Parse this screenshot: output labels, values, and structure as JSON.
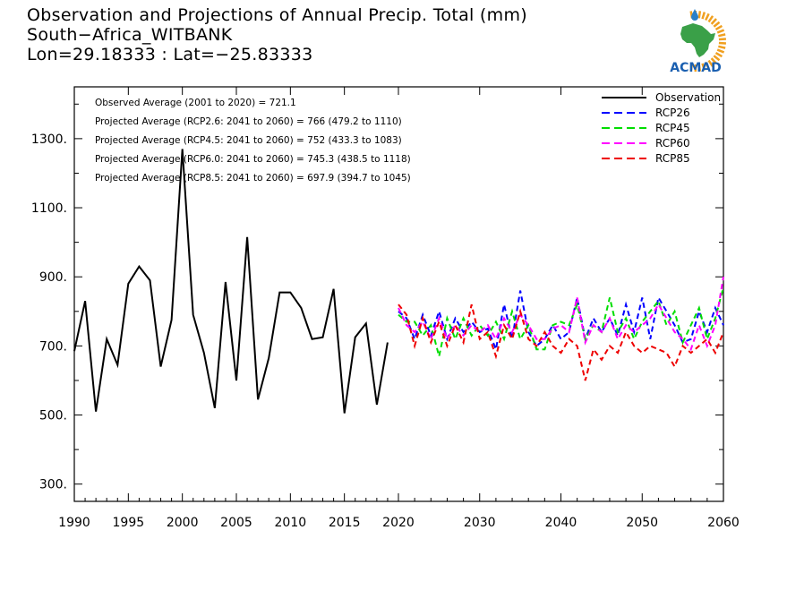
{
  "header": {
    "title": "Observation and Projections of Annual Precip. Total (mm)",
    "location": "South−Africa_WITBANK",
    "coords": "Lon=29.18333 : Lat=−25.83333"
  },
  "logo": {
    "text": "ACMAD",
    "icon": "acmad-africa-sun-logo",
    "colors": {
      "sun": "#f0a020",
      "africa": "#3aa048",
      "drop": "#2a80c8",
      "text": "#1a5fb0"
    }
  },
  "annotations": [
    "Observed Average (2001 to 2020) = 721.1",
    "Projected Average (RCP2.6: 2041 to 2060) = 766 (479.2 to 1110)",
    "Projected Average (RCP4.5: 2041 to 2060) = 752 (433.3 to 1083)",
    "Projected Average (RCP6.0: 2041 to 2060) = 745.3 (438.5 to 1118)",
    "Projected Average (RCP8.5: 2041 to 2060) = 697.9 (394.7 to 1045)"
  ],
  "chart_data": {
    "type": "line",
    "title": "Observation and Projections of Annual Precip. Total (mm)",
    "xlabel": "",
    "ylabel": "",
    "xlim_obs": [
      1990,
      2020
    ],
    "xlim_proj": [
      2020,
      2060
    ],
    "ylim": [
      250,
      1450
    ],
    "yticks": [
      300,
      500,
      700,
      900,
      1100,
      1300
    ],
    "ytick_labels": [
      "300.",
      "500.",
      "700.",
      "900.",
      "1100.",
      "1300."
    ],
    "xticks_obs": [
      1990,
      1995,
      2000,
      2005,
      2010,
      2015,
      2020
    ],
    "xticks_proj": [
      2030,
      2040,
      2050,
      2060
    ],
    "xtick_labels_obs": [
      "1990",
      "1995",
      "2000",
      "2005",
      "2010",
      "2015",
      "2020"
    ],
    "xtick_labels_proj": [
      "2030",
      "2040",
      "2050",
      "2060"
    ],
    "legend_position": "top-right",
    "series": [
      {
        "name": "Observation",
        "color": "#000000",
        "dash": "solid",
        "x": [
          1990,
          1991,
          1992,
          1993,
          1994,
          1995,
          1996,
          1997,
          1998,
          1999,
          2000,
          2001,
          2002,
          2003,
          2004,
          2005,
          2006,
          2007,
          2008,
          2009,
          2010,
          2011,
          2012,
          2013,
          2014,
          2015,
          2016,
          2017,
          2018,
          2019,
          2020
        ],
        "values": [
          685,
          830,
          510,
          720,
          645,
          880,
          930,
          890,
          640,
          775,
          1270,
          790,
          680,
          520,
          885,
          600,
          1015,
          545,
          665,
          855,
          855,
          810,
          720,
          725,
          865,
          505,
          725,
          765,
          530,
          710,
          null
        ]
      },
      {
        "name": "RCP26",
        "color": "#0000ff",
        "dash": "dashed",
        "x": [
          2020,
          2021,
          2022,
          2023,
          2024,
          2025,
          2026,
          2027,
          2028,
          2029,
          2030,
          2031,
          2032,
          2033,
          2034,
          2035,
          2036,
          2037,
          2038,
          2039,
          2040,
          2041,
          2042,
          2043,
          2044,
          2045,
          2046,
          2047,
          2048,
          2049,
          2050,
          2051,
          2052,
          2053,
          2054,
          2055,
          2056,
          2057,
          2058,
          2059,
          2060
        ],
        "values": [
          800,
          780,
          720,
          790,
          730,
          800,
          720,
          780,
          740,
          770,
          740,
          750,
          690,
          820,
          720,
          860,
          740,
          700,
          720,
          760,
          720,
          740,
          840,
          720,
          780,
          740,
          780,
          730,
          820,
          740,
          840,
          720,
          840,
          800,
          760,
          710,
          720,
          800,
          740,
          810,
          760
        ]
      },
      {
        "name": "RCP45",
        "color": "#00dd00",
        "dash": "dashed",
        "x": [
          2020,
          2021,
          2022,
          2023,
          2024,
          2025,
          2026,
          2027,
          2028,
          2029,
          2030,
          2031,
          2032,
          2033,
          2034,
          2035,
          2036,
          2037,
          2038,
          2039,
          2040,
          2041,
          2042,
          2043,
          2044,
          2045,
          2046,
          2047,
          2048,
          2049,
          2050,
          2051,
          2052,
          2053,
          2054,
          2055,
          2056,
          2057,
          2058,
          2059,
          2060
        ],
        "values": [
          790,
          770,
          770,
          730,
          760,
          670,
          780,
          720,
          780,
          730,
          760,
          730,
          770,
          720,
          800,
          720,
          760,
          690,
          690,
          760,
          770,
          760,
          820,
          720,
          760,
          740,
          840,
          740,
          780,
          720,
          770,
          800,
          830,
          760,
          800,
          710,
          760,
          810,
          720,
          780,
          870
        ]
      },
      {
        "name": "RCP60",
        "color": "#ff00ff",
        "dash": "dashed",
        "x": [
          2020,
          2021,
          2022,
          2023,
          2024,
          2025,
          2026,
          2027,
          2028,
          2029,
          2030,
          2031,
          2032,
          2033,
          2034,
          2035,
          2036,
          2037,
          2038,
          2039,
          2040,
          2041,
          2042,
          2043,
          2044,
          2045,
          2046,
          2047,
          2048,
          2049,
          2050,
          2051,
          2052,
          2053,
          2054,
          2055,
          2056,
          2057,
          2058,
          2059,
          2060
        ],
        "values": [
          810,
          760,
          740,
          770,
          720,
          780,
          720,
          760,
          730,
          760,
          740,
          760,
          720,
          780,
          740,
          790,
          760,
          720,
          720,
          750,
          760,
          740,
          840,
          710,
          760,
          740,
          780,
          720,
          760,
          740,
          760,
          780,
          820,
          780,
          740,
          720,
          690,
          760,
          700,
          760,
          900
        ]
      },
      {
        "name": "RCP85",
        "color": "#ee0000",
        "dash": "dashed",
        "x": [
          2020,
          2021,
          2022,
          2023,
          2024,
          2025,
          2026,
          2027,
          2028,
          2029,
          2030,
          2031,
          2032,
          2033,
          2034,
          2035,
          2036,
          2037,
          2038,
          2039,
          2040,
          2041,
          2042,
          2043,
          2044,
          2045,
          2046,
          2047,
          2048,
          2049,
          2050,
          2051,
          2052,
          2053,
          2054,
          2055,
          2056,
          2057,
          2058,
          2059,
          2060
        ],
        "values": [
          820,
          790,
          700,
          780,
          710,
          770,
          700,
          760,
          710,
          820,
          720,
          740,
          670,
          760,
          720,
          800,
          720,
          700,
          740,
          700,
          680,
          720,
          700,
          600,
          690,
          660,
          700,
          680,
          740,
          700,
          680,
          700,
          690,
          680,
          640,
          700,
          680,
          700,
          720,
          680,
          740
        ]
      }
    ]
  }
}
